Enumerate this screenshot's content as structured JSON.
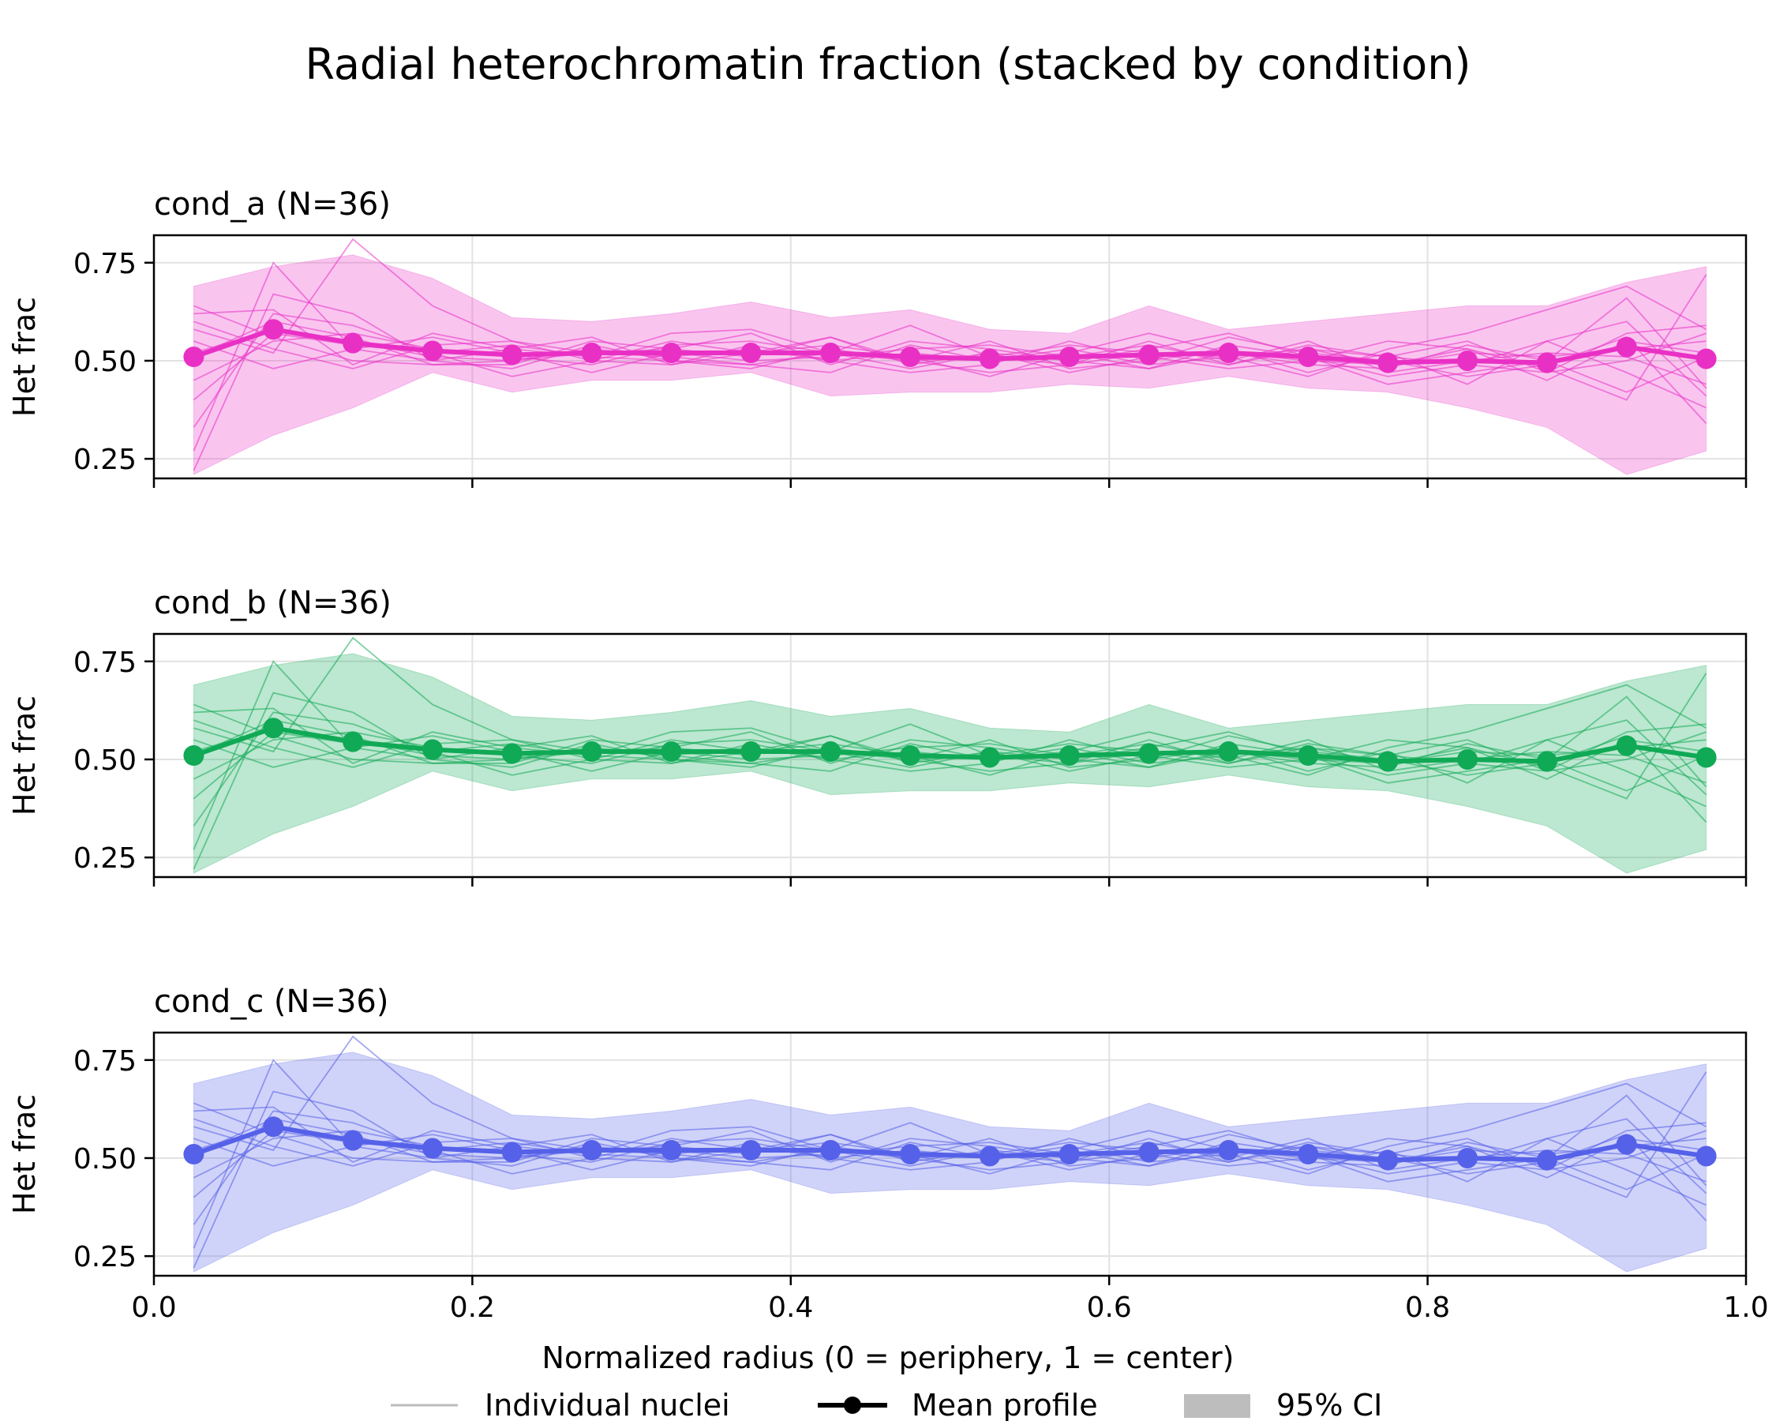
{
  "title": "Radial heterochromatin fraction (stacked by condition)",
  "xlabel": "Normalized radius (0 = periphery, 1 = center)",
  "legend": {
    "individual": "Individual nuclei",
    "mean": "Mean profile",
    "ci": "95% CI"
  },
  "chart_data": {
    "type": "line",
    "xlim": [
      0.0,
      1.0
    ],
    "ylim": [
      0.2,
      0.82
    ],
    "x_ticks": [
      "0.0",
      "0.2",
      "0.4",
      "0.6",
      "0.8",
      "1.0"
    ],
    "y_ticks": [
      "0.25",
      "0.50",
      "0.75"
    ],
    "ylabel": "Het frac",
    "grid": true,
    "legend_placement": "bottom-center",
    "x": [
      0.025,
      0.075,
      0.125,
      0.175,
      0.225,
      0.275,
      0.325,
      0.375,
      0.425,
      0.475,
      0.525,
      0.575,
      0.625,
      0.675,
      0.725,
      0.775,
      0.825,
      0.875,
      0.925,
      0.975
    ],
    "mean": [
      0.51,
      0.58,
      0.545,
      0.525,
      0.515,
      0.52,
      0.52,
      0.52,
      0.52,
      0.51,
      0.505,
      0.51,
      0.515,
      0.52,
      0.51,
      0.495,
      0.5,
      0.495,
      0.535,
      0.505
    ],
    "ci_upper": [
      0.69,
      0.74,
      0.77,
      0.71,
      0.61,
      0.6,
      0.62,
      0.65,
      0.61,
      0.63,
      0.58,
      0.57,
      0.64,
      0.58,
      0.6,
      0.62,
      0.64,
      0.64,
      0.7,
      0.74
    ],
    "ci_lower": [
      0.21,
      0.31,
      0.38,
      0.47,
      0.42,
      0.45,
      0.45,
      0.47,
      0.41,
      0.42,
      0.42,
      0.44,
      0.43,
      0.46,
      0.43,
      0.42,
      0.38,
      0.33,
      0.21,
      0.27
    ],
    "nuclei": [
      [
        0.64,
        0.56,
        0.5,
        0.49,
        0.5,
        0.52,
        0.53,
        0.51,
        0.56,
        0.5,
        0.47,
        0.49,
        0.52,
        0.51,
        0.53,
        0.49,
        0.53,
        0.45,
        0.55,
        0.52
      ],
      [
        0.27,
        0.75,
        0.53,
        0.5,
        0.48,
        0.54,
        0.5,
        0.49,
        0.52,
        0.48,
        0.52,
        0.5,
        0.53,
        0.57,
        0.51,
        0.44,
        0.47,
        0.5,
        0.66,
        0.43
      ],
      [
        0.45,
        0.55,
        0.57,
        0.53,
        0.51,
        0.49,
        0.54,
        0.55,
        0.52,
        0.5,
        0.55,
        0.48,
        0.5,
        0.53,
        0.47,
        0.52,
        0.44,
        0.55,
        0.47,
        0.38
      ],
      [
        0.58,
        0.52,
        0.81,
        0.64,
        0.55,
        0.52,
        0.51,
        0.53,
        0.5,
        0.52,
        0.5,
        0.52,
        0.48,
        0.52,
        0.5,
        0.49,
        0.52,
        0.51,
        0.53,
        0.55
      ],
      [
        0.62,
        0.63,
        0.49,
        0.57,
        0.53,
        0.51,
        0.57,
        0.58,
        0.52,
        0.59,
        0.51,
        0.49,
        0.55,
        0.49,
        0.53,
        0.51,
        0.49,
        0.47,
        0.57,
        0.59
      ],
      [
        0.52,
        0.58,
        0.55,
        0.51,
        0.5,
        0.53,
        0.51,
        0.49,
        0.47,
        0.54,
        0.5,
        0.53,
        0.49,
        0.51,
        0.46,
        0.53,
        0.57,
        0.63,
        0.69,
        0.58
      ],
      [
        0.33,
        0.62,
        0.59,
        0.52,
        0.46,
        0.5,
        0.49,
        0.52,
        0.56,
        0.49,
        0.52,
        0.47,
        0.51,
        0.48,
        0.5,
        0.55,
        0.53,
        0.48,
        0.4,
        0.72
      ],
      [
        0.55,
        0.48,
        0.53,
        0.56,
        0.52,
        0.47,
        0.52,
        0.5,
        0.51,
        0.53,
        0.54,
        0.51,
        0.54,
        0.5,
        0.55,
        0.47,
        0.5,
        0.52,
        0.51,
        0.44
      ],
      [
        0.22,
        0.67,
        0.62,
        0.5,
        0.53,
        0.56,
        0.49,
        0.54,
        0.5,
        0.47,
        0.49,
        0.55,
        0.5,
        0.56,
        0.52,
        0.5,
        0.46,
        0.49,
        0.56,
        0.34
      ],
      [
        0.6,
        0.53,
        0.48,
        0.54,
        0.55,
        0.5,
        0.55,
        0.52,
        0.54,
        0.51,
        0.46,
        0.52,
        0.57,
        0.52,
        0.49,
        0.48,
        0.54,
        0.5,
        0.42,
        0.51
      ],
      [
        0.51,
        0.6,
        0.56,
        0.49,
        0.49,
        0.55,
        0.53,
        0.57,
        0.49,
        0.55,
        0.53,
        0.5,
        0.48,
        0.54,
        0.51,
        0.46,
        0.49,
        0.55,
        0.6,
        0.41
      ],
      [
        0.4,
        0.57,
        0.54,
        0.52,
        0.54,
        0.51,
        0.5,
        0.48,
        0.53,
        0.5,
        0.51,
        0.54,
        0.52,
        0.49,
        0.54,
        0.51,
        0.55,
        0.47,
        0.5,
        0.57
      ]
    ],
    "panels": [
      {
        "title": "cond_a  (N=36)",
        "color": "#e930c5"
      },
      {
        "title": "cond_b  (N=36)",
        "color": "#10a955"
      },
      {
        "title": "cond_c  (N=36)",
        "color": "#5561e8"
      }
    ]
  }
}
